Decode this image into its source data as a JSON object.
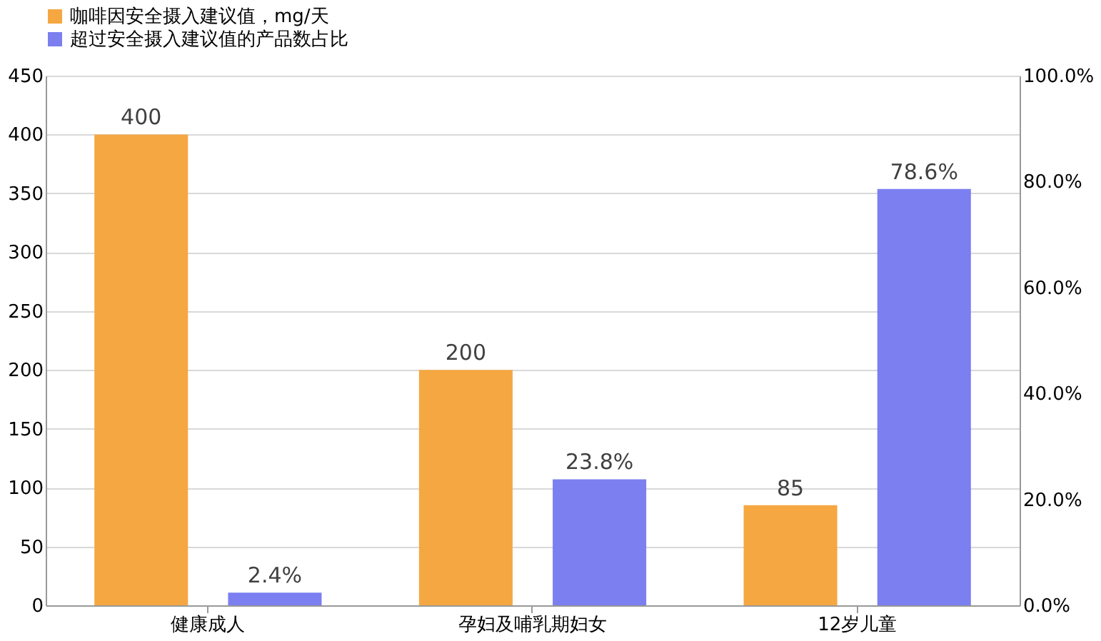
{
  "chart_data": {
    "type": "bar",
    "categories": [
      "健康成人",
      "孕妇及哺乳期妇女",
      "12岁儿童"
    ],
    "series": [
      {
        "name": "咖啡因安全摄入建议值，mg/天",
        "color": "#f5a742",
        "values": [
          400,
          200,
          85
        ],
        "value_labels": [
          "400",
          "200",
          "85"
        ]
      },
      {
        "name": "超过安全摄入建议值的产品数占比",
        "color": "#7b7ff0",
        "values": [
          2.4,
          23.8,
          78.6
        ],
        "value_labels": [
          "2.4%",
          "23.8%",
          "78.6%"
        ],
        "axis": "y2"
      }
    ],
    "ylim": [
      0,
      450
    ],
    "yticks": [
      0,
      50,
      100,
      150,
      200,
      250,
      300,
      350,
      400,
      450
    ],
    "y2lim": [
      0,
      100
    ],
    "y2ticks": [
      {
        "value": 0,
        "label": "0.0%"
      },
      {
        "value": 20,
        "label": "20.0%"
      },
      {
        "value": 40,
        "label": "40.0%"
      },
      {
        "value": 60,
        "label": "60.0%"
      },
      {
        "value": 80,
        "label": "80.0%"
      },
      {
        "value": 100,
        "label": "100.0%"
      }
    ],
    "grid": "y",
    "legend": "top"
  }
}
